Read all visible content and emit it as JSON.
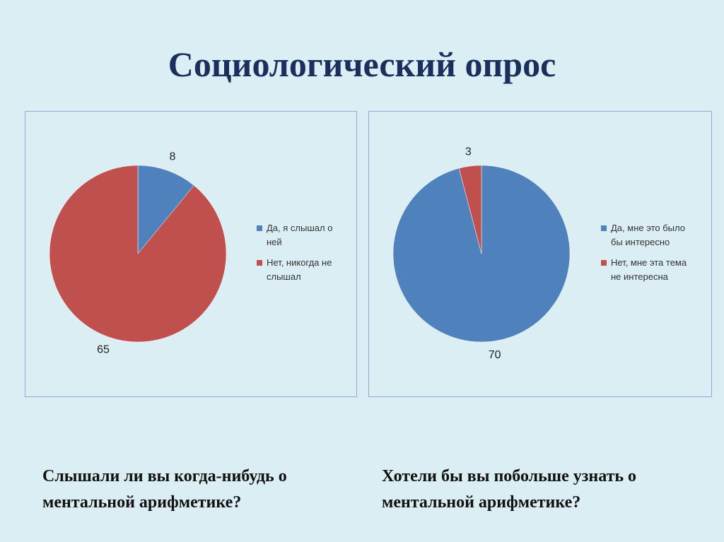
{
  "title": "Социологический опрос",
  "chart_data": [
    {
      "type": "pie",
      "categories": [
        "Да, я слышал о ней",
        "Нет, никогда не слышал"
      ],
      "values": [
        8,
        65
      ],
      "colors": [
        "#4f81bd",
        "#c0504d"
      ],
      "caption": "Слышали ли вы когда-нибудь о ментальной арифметике?"
    },
    {
      "type": "pie",
      "categories": [
        "Да, мне это было бы интересно",
        "Нет, мне эта тема не интересна"
      ],
      "values": [
        70,
        3
      ],
      "colors": [
        "#4f81bd",
        "#c0504d"
      ],
      "caption": "Хотели бы вы побольше узнать о ментальной арифметике?"
    }
  ]
}
